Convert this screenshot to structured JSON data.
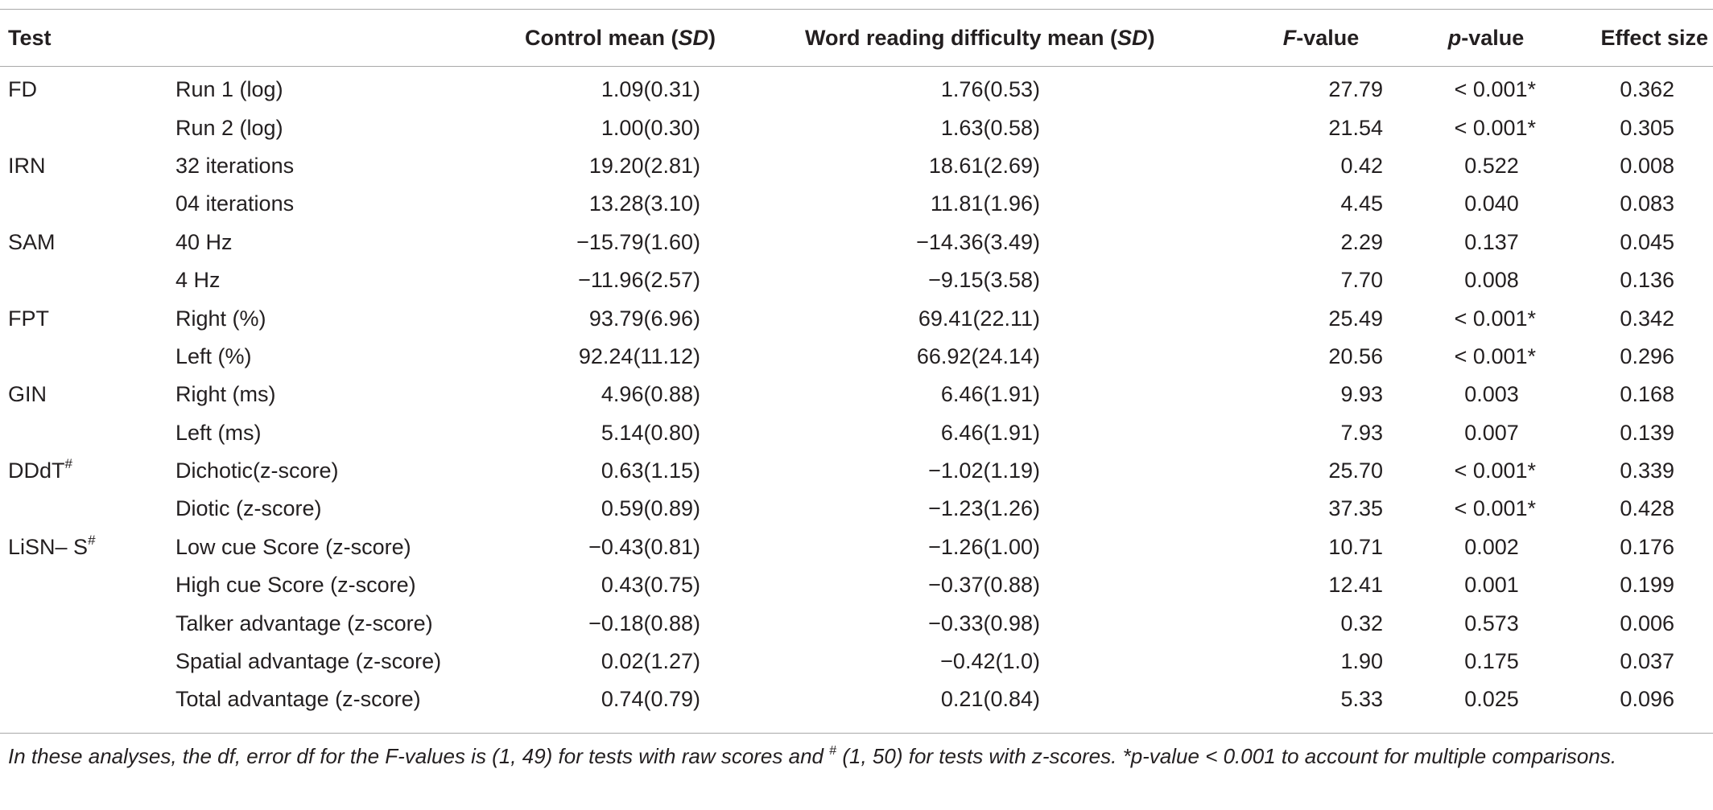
{
  "headers": {
    "test": "Test",
    "control_prefix": "Control mean (",
    "control_sd": "SD",
    "control_suffix": ")",
    "word_prefix": "Word reading difficulty mean (",
    "word_sd": "SD",
    "word_suffix": ")",
    "f_italic": "F",
    "f_suffix": "-value",
    "p_italic": "p",
    "p_suffix": "-value",
    "effect": "Effect size"
  },
  "rows": [
    {
      "test": "FD",
      "test_sup": "",
      "sub": "Run 1 (log)",
      "control": "1.09(0.31)",
      "word": "1.76(0.53)",
      "f": "27.79",
      "p": "< 0.001*",
      "es": "0.362"
    },
    {
      "test": "",
      "test_sup": "",
      "sub": "Run 2 (log)",
      "control": "1.00(0.30)",
      "word": "1.63(0.58)",
      "f": "21.54",
      "p": "< 0.001*",
      "es": "0.305"
    },
    {
      "test": "IRN",
      "test_sup": "",
      "sub": "32 iterations",
      "control": "19.20(2.81)",
      "word": "18.61(2.69)",
      "f": "0.42",
      "p": "0.522",
      "es": "0.008"
    },
    {
      "test": "",
      "test_sup": "",
      "sub": "04 iterations",
      "control": "13.28(3.10)",
      "word": "11.81(1.96)",
      "f": "4.45",
      "p": "0.040",
      "es": "0.083"
    },
    {
      "test": "SAM",
      "test_sup": "",
      "sub": "40 Hz",
      "control": "−15.79(1.60)",
      "word": "−14.36(3.49)",
      "f": "2.29",
      "p": "0.137",
      "es": "0.045"
    },
    {
      "test": "",
      "test_sup": "",
      "sub": "4 Hz",
      "control": "−11.96(2.57)",
      "word": "−9.15(3.58)",
      "f": "7.70",
      "p": "0.008",
      "es": "0.136"
    },
    {
      "test": "FPT",
      "test_sup": "",
      "sub": "Right (%)",
      "control": "93.79(6.96)",
      "word": "69.41(22.11)",
      "f": "25.49",
      "p": "< 0.001*",
      "es": "0.342"
    },
    {
      "test": "",
      "test_sup": "",
      "sub": "Left (%)",
      "control": "92.24(11.12)",
      "word": "66.92(24.14)",
      "f": "20.56",
      "p": "< 0.001*",
      "es": "0.296"
    },
    {
      "test": "GIN",
      "test_sup": "",
      "sub": "Right (ms)",
      "control": "4.96(0.88)",
      "word": "6.46(1.91)",
      "f": "9.93",
      "p": "0.003",
      "es": "0.168"
    },
    {
      "test": "",
      "test_sup": "",
      "sub": "Left (ms)",
      "control": "5.14(0.80)",
      "word": "6.46(1.91)",
      "f": "7.93",
      "p": "0.007",
      "es": "0.139"
    },
    {
      "test": "DDdT",
      "test_sup": "#",
      "sub": "Dichotic(z-score)",
      "control": "0.63(1.15)",
      "word": "−1.02(1.19)",
      "f": "25.70",
      "p": "< 0.001*",
      "es": "0.339"
    },
    {
      "test": "",
      "test_sup": "",
      "sub": "Diotic (z-score)",
      "control": "0.59(0.89)",
      "word": "−1.23(1.26)",
      "f": "37.35",
      "p": "< 0.001*",
      "es": "0.428"
    },
    {
      "test": "LiSN– S",
      "test_sup": "#",
      "sub": "Low cue Score (z-score)",
      "control": "−0.43(0.81)",
      "word": "−1.26(1.00)",
      "f": "10.71",
      "p": "0.002",
      "es": "0.176"
    },
    {
      "test": "",
      "test_sup": "",
      "sub": "High cue Score (z-score)",
      "control": "0.43(0.75)",
      "word": "−0.37(0.88)",
      "f": "12.41",
      "p": "0.001",
      "es": "0.199"
    },
    {
      "test": "",
      "test_sup": "",
      "sub": "Talker advantage (z-score)",
      "control": "−0.18(0.88)",
      "word": "−0.33(0.98)",
      "f": "0.32",
      "p": "0.573",
      "es": "0.006"
    },
    {
      "test": "",
      "test_sup": "",
      "sub": "Spatial advantage (z-score)",
      "control": "0.02(1.27)",
      "word": "−0.42(1.0)",
      "f": "1.90",
      "p": "0.175",
      "es": "0.037"
    },
    {
      "test": "",
      "test_sup": "",
      "sub": "Total advantage (z-score)",
      "control": "0.74(0.79)",
      "word": "0.21(0.84)",
      "f": "5.33",
      "p": "0.025",
      "es": "0.096"
    }
  ],
  "footnote": {
    "part1": "In these analyses, the df, error df for the F-values is (1, 49) for tests with raw scores and ",
    "sup": "#",
    "part2": " (1, 50) for tests with z-scores. *p-value < 0.001 to account for multiple comparisons."
  }
}
